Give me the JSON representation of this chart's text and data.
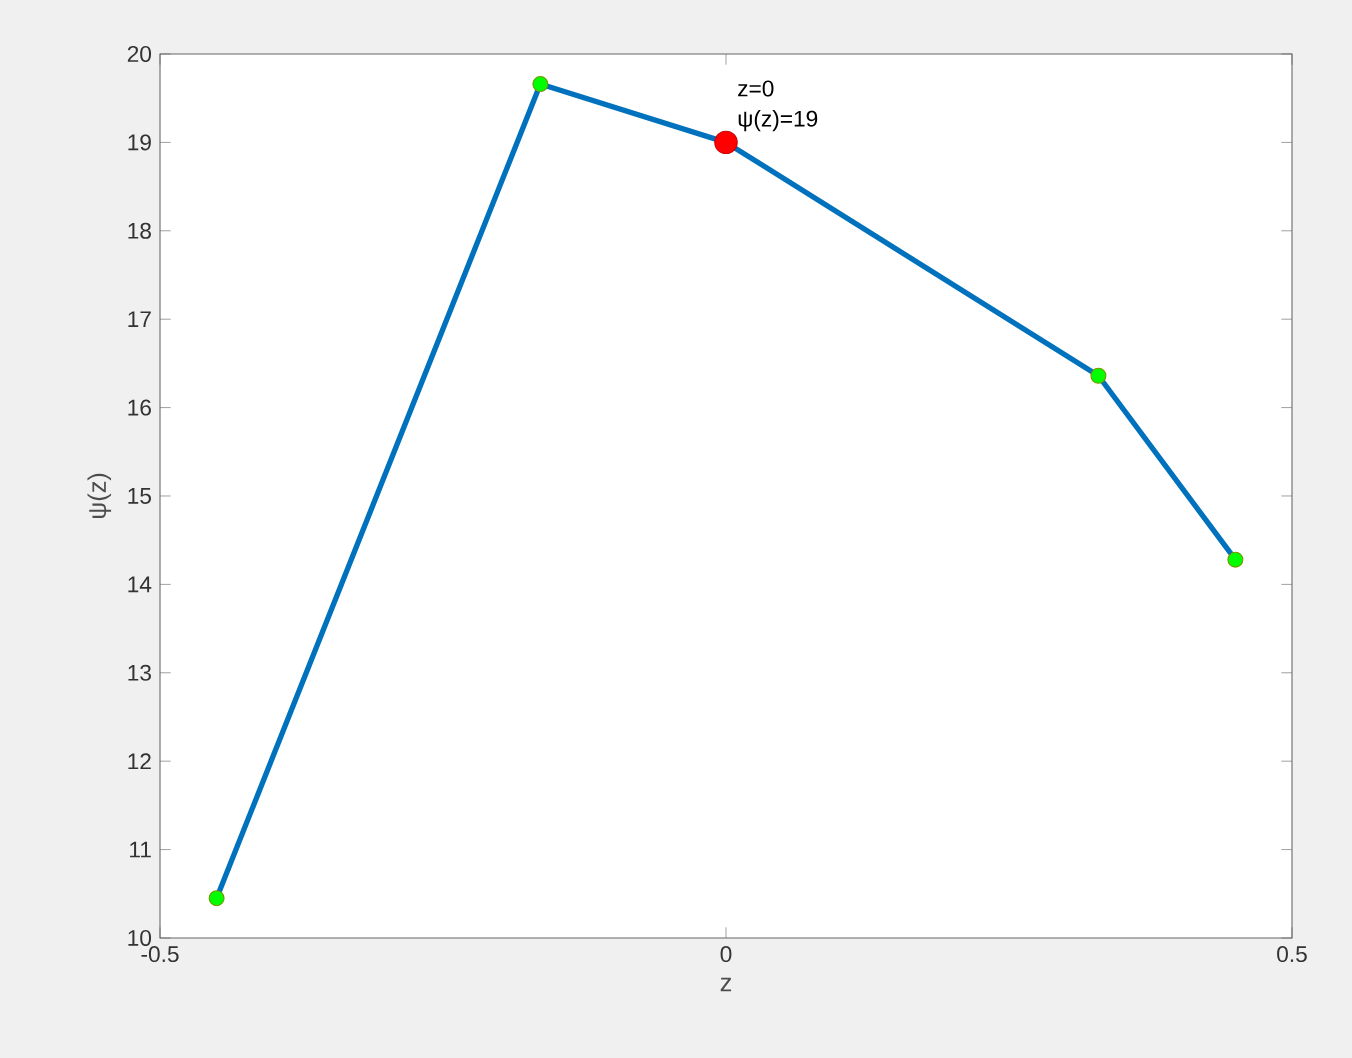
{
  "chart_data": {
    "type": "line",
    "xlabel": "z",
    "ylabel": "ψ(z)",
    "series": [
      {
        "color": "#0072bd",
        "x": [
          -0.45,
          -0.164,
          0,
          0.329,
          0.45
        ],
        "values": [
          10.45,
          19.66,
          19,
          16.36,
          14.28
        ]
      },
      {
        "type": "scatter",
        "color": "#00ff00",
        "x": [
          -0.45,
          -0.164,
          0.329,
          0.45
        ],
        "values": [
          10.45,
          19.66,
          16.36,
          14.28
        ]
      },
      {
        "type": "scatter",
        "color": "#ff0000",
        "x": [
          0
        ],
        "values": [
          19
        ]
      }
    ],
    "annotations": [
      {
        "text": "z=0",
        "x": 0,
        "y": 19
      },
      {
        "text": "ψ(z)=19",
        "x": 0,
        "y": 19
      }
    ],
    "xlim": [
      -0.5,
      0.5
    ],
    "xticks": [
      -0.5,
      0,
      0.5
    ],
    "ylim": [
      10,
      20
    ],
    "yticks": [
      10,
      11,
      12,
      13,
      14,
      15,
      16,
      17,
      18,
      19,
      20
    ],
    "grid": false
  }
}
